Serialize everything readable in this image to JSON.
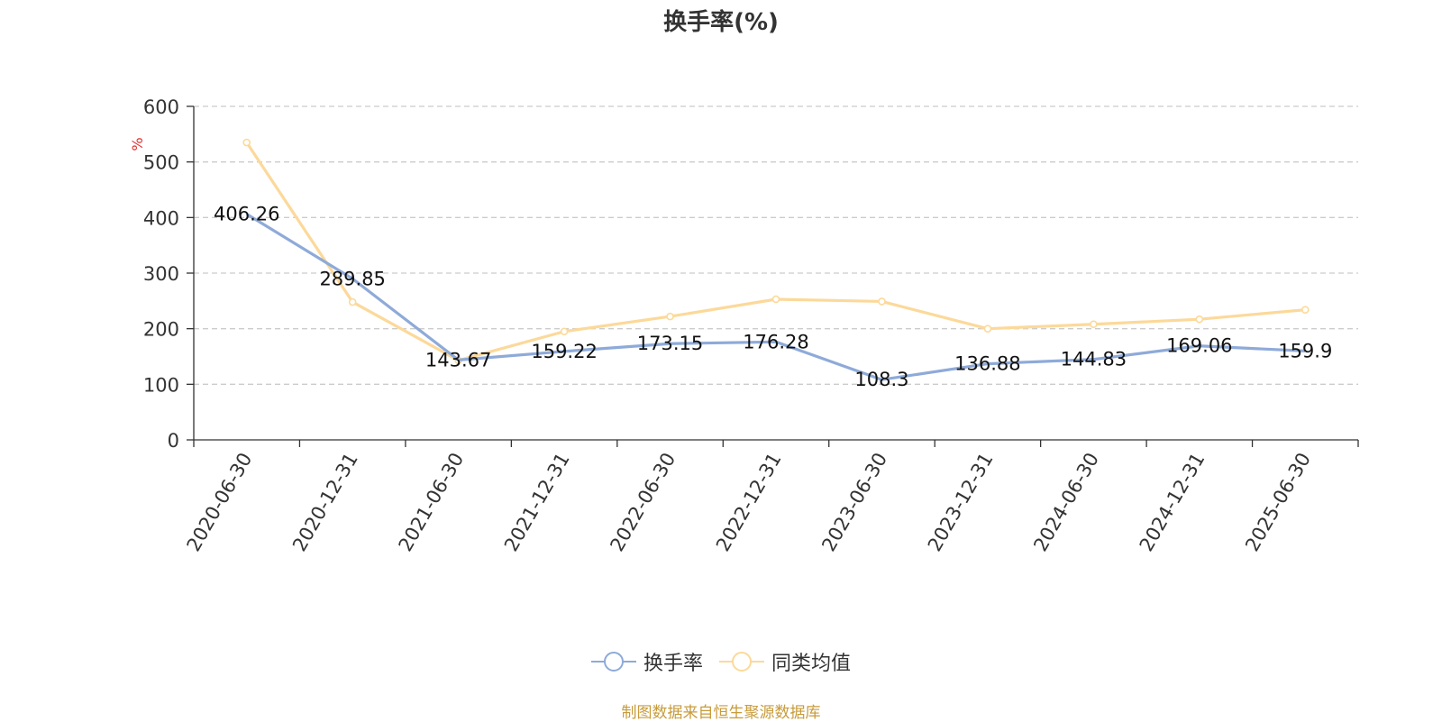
{
  "title": "换手率(%)",
  "source": "制图数据来自恒生聚源数据库",
  "colors": {
    "turnover": "#8eaad9",
    "peer_avg": "#fcd99a",
    "axis": "#333333",
    "grid": "#cccccc",
    "unit": "#e03030"
  },
  "legend_icon": "circle-line-marker-icon",
  "chart_data": {
    "type": "line",
    "title": "换手率(%)",
    "ylabel": "%",
    "xlabel": "",
    "ylim": [
      0,
      600
    ],
    "yticks": [
      "0",
      "100",
      "200",
      "300",
      "400",
      "500",
      "600"
    ],
    "categories": [
      "2020-06-30",
      "2020-12-31",
      "2021-06-30",
      "2021-12-31",
      "2022-06-30",
      "2022-12-31",
      "2023-06-30",
      "2023-12-31",
      "2024-06-30",
      "2024-12-31",
      "2025-06-30"
    ],
    "grid": true,
    "legend_position": "bottom-center",
    "series": [
      {
        "name": "换手率",
        "values": [
          406.26,
          289.85,
          143.67,
          159.22,
          173.15,
          176.28,
          108.3,
          136.88,
          144.83,
          169.06,
          159.9
        ],
        "labels": [
          "406.26",
          "289.85",
          "143.67",
          "159.22",
          "173.15",
          "176.28",
          "108.3",
          "136.88",
          "144.83",
          "169.06",
          "159.9"
        ]
      },
      {
        "name": "同类均值",
        "values": [
          535,
          248,
          143,
          195,
          222,
          253,
          249,
          200,
          208,
          217,
          234
        ]
      }
    ]
  }
}
